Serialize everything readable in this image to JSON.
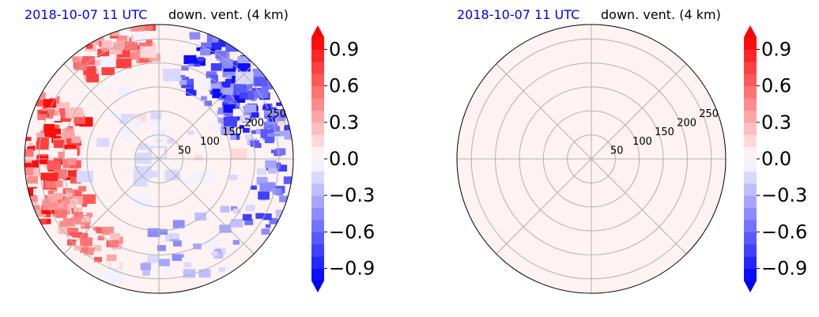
{
  "chart_data": [
    {
      "type": "heatmap",
      "projection": "polar",
      "title_left": "2018-10-07 11 UTC",
      "title_right": "down. vent. (4 km)",
      "title_left_color": "#0000ff",
      "radial_ticks": [
        "50",
        "100",
        "150",
        "200",
        "250"
      ],
      "radial_values": [
        50,
        100,
        150,
        200,
        250
      ],
      "r_max": 280,
      "grid": true,
      "field": "mixed",
      "colorbar": {
        "ticks": [
          "0.9",
          "0.6",
          "0.3",
          "0.0",
          "−0.3",
          "−0.6",
          "−0.9"
        ],
        "tick_values": [
          0.9,
          0.6,
          0.3,
          0.0,
          -0.3,
          -0.6,
          -0.9
        ],
        "range": [
          -1.0,
          1.0
        ],
        "colormap": "bwr",
        "extend": "both"
      }
    },
    {
      "type": "heatmap",
      "projection": "polar",
      "title_left": "2018-10-07 11 UTC",
      "title_right": "down. vent. (4 km)",
      "title_left_color": "#0000ff",
      "radial_ticks": [
        "50",
        "100",
        "150",
        "200",
        "250"
      ],
      "radial_values": [
        50,
        100,
        150,
        200,
        250
      ],
      "r_max": 280,
      "grid": true,
      "field": "uniform",
      "uniform_value": 0.03,
      "colorbar": {
        "ticks": [
          "0.9",
          "0.6",
          "0.3",
          "0.0",
          "−0.3",
          "−0.6",
          "−0.9"
        ],
        "tick_values": [
          0.9,
          0.6,
          0.3,
          0.0,
          -0.3,
          -0.6,
          -0.9
        ],
        "range": [
          -1.0,
          1.0
        ],
        "colormap": "bwr",
        "extend": "both"
      }
    }
  ]
}
